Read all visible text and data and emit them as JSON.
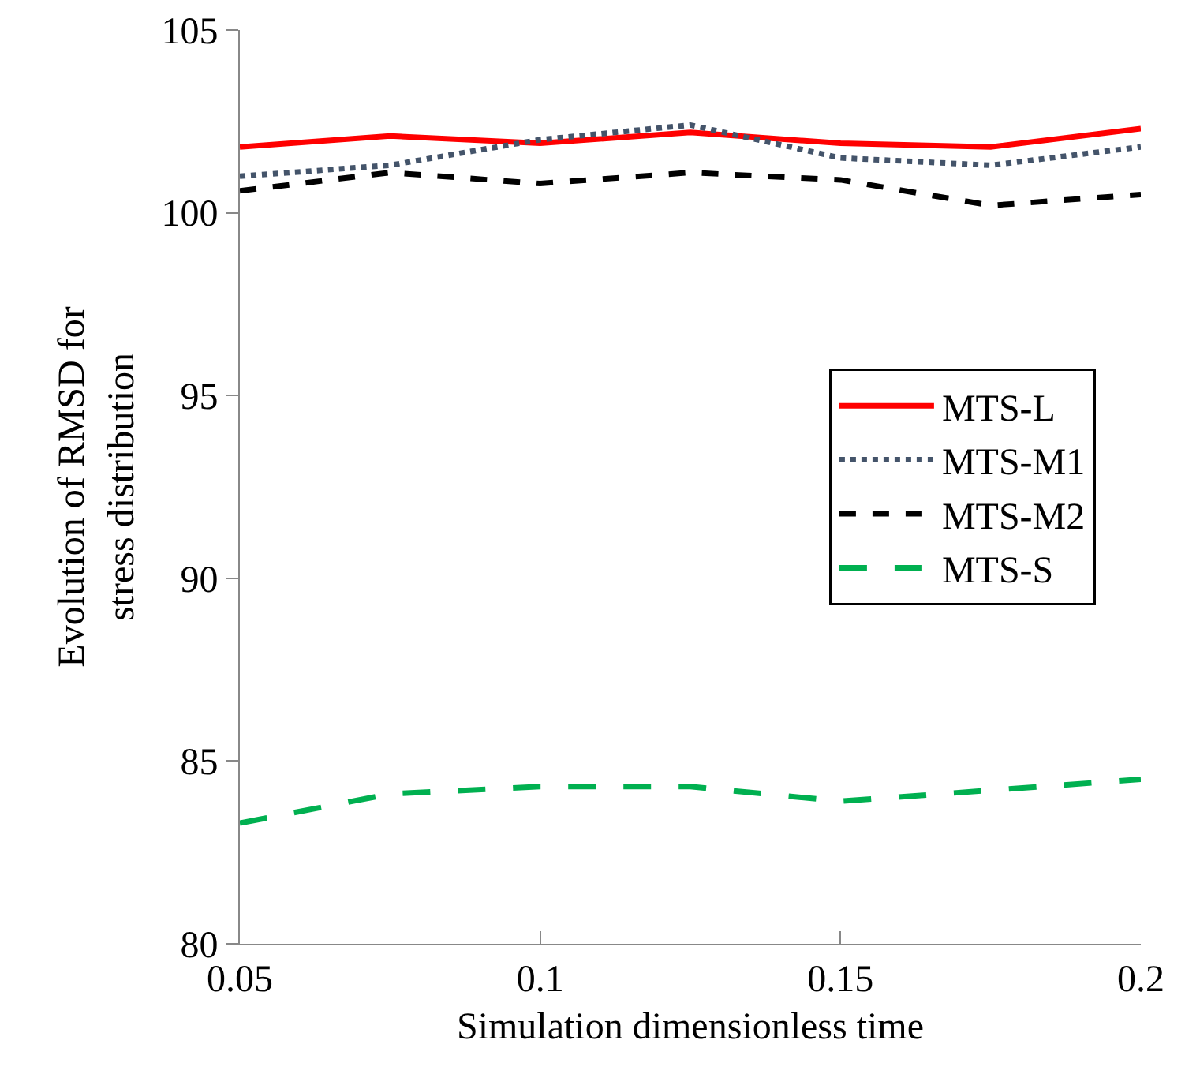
{
  "chart_data": {
    "type": "line",
    "xlabel": "Simulation dimensionless time",
    "ylabel": "Evolution of RMSD for stress distribution",
    "x": [
      0.05,
      0.075,
      0.1,
      0.125,
      0.15,
      0.175,
      0.2
    ],
    "series": [
      {
        "name": "MTS-L",
        "color": "#ff0000",
        "line_style": "solid",
        "values": [
          101.8,
          102.1,
          101.9,
          102.2,
          101.9,
          101.8,
          102.3
        ]
      },
      {
        "name": "MTS-M1",
        "color": "#44546a",
        "line_style": "dotted",
        "values": [
          101.0,
          101.3,
          102.0,
          102.4,
          101.5,
          101.3,
          101.8
        ]
      },
      {
        "name": "MTS-M2",
        "color": "#000000",
        "line_style": "dashed",
        "values": [
          100.6,
          101.1,
          100.8,
          101.1,
          100.9,
          100.2,
          100.5
        ]
      },
      {
        "name": "MTS-S",
        "color": "#00b050",
        "line_style": "longdash",
        "values": [
          83.3,
          84.1,
          84.3,
          84.3,
          83.9,
          84.2,
          84.5
        ]
      }
    ],
    "xlim": [
      0.05,
      0.2
    ],
    "xticks": [
      0.05,
      0.1,
      0.15,
      0.2
    ],
    "ylim": [
      80,
      105
    ],
    "yticks": [
      80,
      85,
      90,
      95,
      100,
      105
    ],
    "grid": false,
    "legend": "right",
    "marker": "none"
  }
}
